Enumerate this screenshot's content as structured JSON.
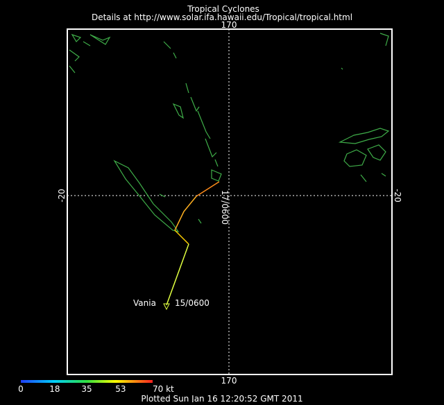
{
  "header": {
    "title": "Tropical Cyclones",
    "subtitle": "Details at http://www.solar.ifa.hawaii.edu/Tropical/tropical.html"
  },
  "axes": {
    "top_lon": "170",
    "bottom_lon": "170",
    "left_lat": "-20",
    "right_lat": "-20"
  },
  "track": {
    "name": "Vania",
    "start_label": "15/0600",
    "end_label": "17/0600"
  },
  "legend": {
    "ticks": [
      0,
      18,
      35,
      53,
      {
        "value": 70,
        "label": "70 kt"
      }
    ]
  },
  "footer": "Plotted Sun Jan 16 12:20:52 GMT 2011"
}
